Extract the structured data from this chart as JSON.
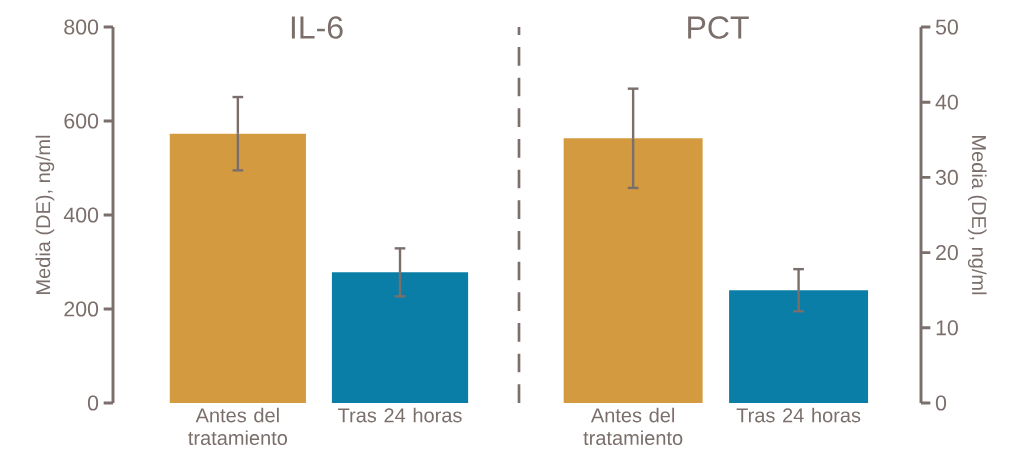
{
  "chart_data": [
    {
      "type": "bar",
      "title": "IL-6",
      "ylabel": "Media (DE), ng/ml",
      "categories": [
        "Antes del tratamiento",
        "Tras 24 horas"
      ],
      "values": [
        573,
        278
      ],
      "errors": [
        78,
        51
      ],
      "colors": [
        "#d39a40",
        "#0a7ea6"
      ],
      "ylim": [
        0,
        800
      ],
      "yticks": [
        0,
        200,
        400,
        600,
        800
      ]
    },
    {
      "type": "bar",
      "title": "PCT",
      "y2label": "Media (DE), ng/ml",
      "categories": [
        "Antes del tratamiento",
        "Tras 24 horas"
      ],
      "y2lim": [
        0,
        50
      ],
      "y2ticks": [
        0,
        10,
        20,
        30,
        40,
        50
      ],
      "series": [
        {
          "axis": "y2",
          "values": [
            35.2,
            15.0
          ],
          "errors": [
            6.6,
            2.8
          ],
          "colors": [
            "#d39a40",
            "#0a7ea6"
          ]
        }
      ]
    }
  ]
}
